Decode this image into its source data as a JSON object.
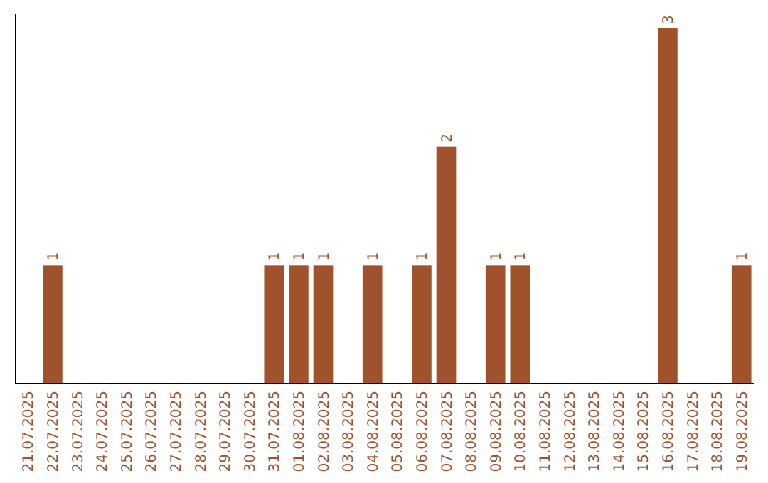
{
  "chart_data": {
    "type": "bar",
    "categories": [
      "21.07.2025",
      "22.07.2025",
      "23.07.2025",
      "24.07.2025",
      "25.07.2025",
      "26.07.2025",
      "27.07.2025",
      "28.07.2025",
      "29.07.2025",
      "30.07.2025",
      "31.07.2025",
      "01.08.2025",
      "02.08.2025",
      "03.08.2025",
      "04.08.2025",
      "05.08.2025",
      "06.08.2025",
      "07.08.2025",
      "08.08.2025",
      "09.08.2025",
      "10.08.2025",
      "11.08.2025",
      "12.08.2025",
      "13.08.2025",
      "14.08.2025",
      "15.08.2025",
      "16.08.2025",
      "17.08.2025",
      "18.08.2025",
      "19.08.2025"
    ],
    "values": [
      0,
      1,
      0,
      0,
      0,
      0,
      0,
      0,
      0,
      0,
      1,
      1,
      1,
      0,
      1,
      0,
      1,
      2,
      0,
      1,
      1,
      0,
      0,
      0,
      0,
      0,
      3,
      0,
      0,
      1
    ],
    "value_labels": [
      null,
      "1",
      null,
      null,
      null,
      null,
      null,
      null,
      null,
      null,
      "1",
      "1",
      "1",
      null,
      "1",
      null,
      "1",
      "2",
      null,
      "1",
      "1",
      null,
      null,
      null,
      null,
      null,
      "3",
      null,
      null,
      "1"
    ],
    "color": "#a0522d",
    "ylim": [
      0,
      3.12
    ],
    "tick_labels": "x"
  }
}
